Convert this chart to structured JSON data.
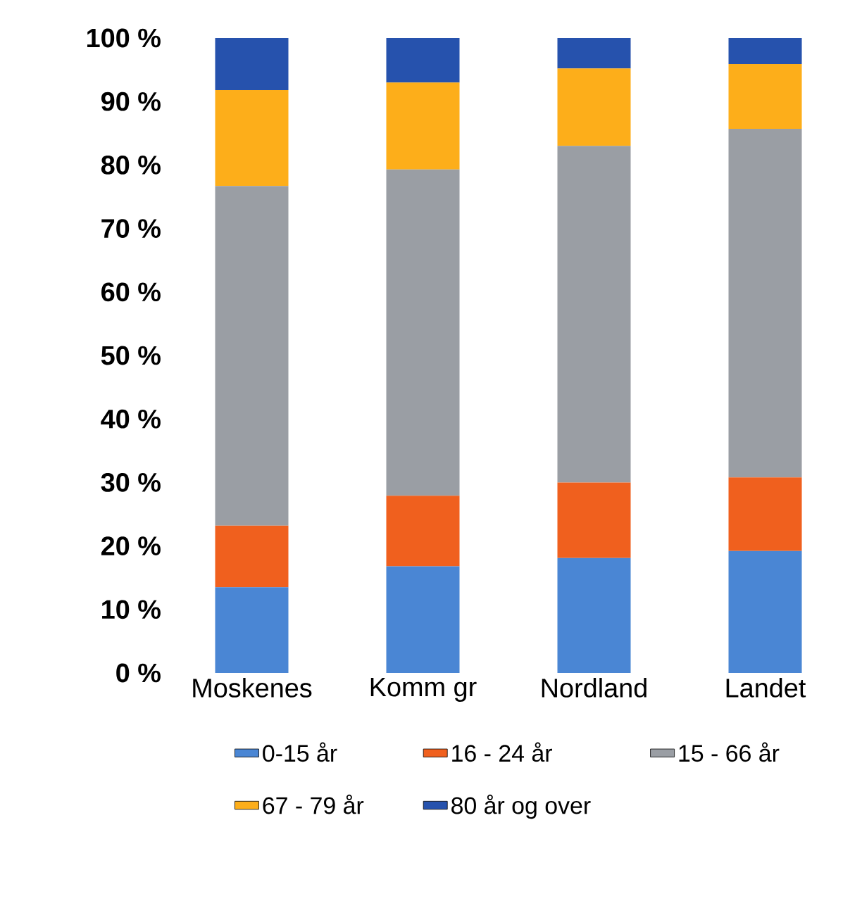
{
  "chart_data": {
    "type": "bar",
    "stacked": true,
    "categories": [
      "Moskenes",
      "Komm gr",
      "Nordland",
      "Landet"
    ],
    "series": [
      {
        "name": "0-15 år",
        "color": "#4a86d4",
        "values": [
          13.5,
          16.8,
          18.1,
          19.2
        ]
      },
      {
        "name": "16 - 24 år",
        "color": "#f0601e",
        "values": [
          9.7,
          11.1,
          11.9,
          11.6
        ]
      },
      {
        "name": "15 - 66 år",
        "color": "#9a9ea4",
        "values": [
          53.5,
          51.4,
          53.0,
          54.9
        ]
      },
      {
        "name": "67 - 79 år",
        "color": "#fdae1a",
        "values": [
          15.1,
          13.7,
          12.2,
          10.2
        ]
      },
      {
        "name": "80 år og over",
        "color": "#2652ad",
        "values": [
          8.2,
          7.0,
          4.8,
          4.1
        ]
      }
    ],
    "ylim": [
      0,
      100
    ],
    "yticks": [
      {
        "value": 0,
        "label": "0 %"
      },
      {
        "value": 10,
        "label": "10 %"
      },
      {
        "value": 20,
        "label": "20 %"
      },
      {
        "value": 30,
        "label": "30 %"
      },
      {
        "value": 40,
        "label": "40 %"
      },
      {
        "value": 50,
        "label": "50 %"
      },
      {
        "value": 60,
        "label": "60 %"
      },
      {
        "value": 70,
        "label": "70 %"
      },
      {
        "value": 80,
        "label": "80 %"
      },
      {
        "value": 90,
        "label": "90 %"
      },
      {
        "value": 100,
        "label": "100 %"
      }
    ],
    "legend": "bottom"
  }
}
